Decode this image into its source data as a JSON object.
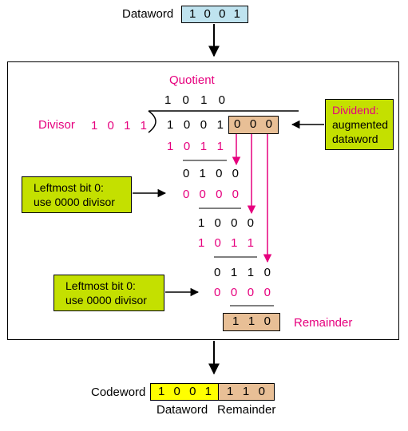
{
  "top": {
    "label": "Dataword",
    "bits": [
      "1",
      "0",
      "0",
      "1"
    ]
  },
  "division": {
    "quotient_label": "Quotient",
    "quotient": [
      "1",
      "0",
      "1",
      "0"
    ],
    "divisor_label": "Divisor",
    "divisor": [
      "1",
      "0",
      "1",
      "1"
    ],
    "dividend_data": [
      "1",
      "0",
      "0",
      "1"
    ],
    "dividend_zeros": [
      "0",
      "0",
      "0"
    ],
    "step1_sub": [
      "1",
      "0",
      "1",
      "1"
    ],
    "step2_rem": [
      "0",
      "1",
      "0",
      "0"
    ],
    "step2_sub": [
      "0",
      "0",
      "0",
      "0"
    ],
    "step3_rem": [
      "1",
      "0",
      "0",
      "0"
    ],
    "step3_sub": [
      "1",
      "0",
      "1",
      "1"
    ],
    "step4_rem": [
      "0",
      "1",
      "1",
      "0"
    ],
    "step4_sub": [
      "0",
      "0",
      "0",
      "0"
    ],
    "remainder": [
      "1",
      "1",
      "0"
    ],
    "remainder_label": "Remainder"
  },
  "callouts": {
    "dividend_title": "Dividend:",
    "dividend_line1": "augmented",
    "dividend_line2": "dataword",
    "leftmost1_line1": "Leftmost bit 0:",
    "leftmost1_line2": "use 0000 divisor",
    "leftmost2_line1": "Leftmost bit 0:",
    "leftmost2_line2": "use 0000 divisor"
  },
  "bottom": {
    "label": "Codeword",
    "data_bits": [
      "1",
      "0",
      "0",
      "1"
    ],
    "rem_bits": [
      "1",
      "1",
      "0"
    ],
    "data_caption": "Dataword",
    "rem_caption": "Remainder"
  },
  "colors": {
    "magenta": "#e6007e",
    "dataword_box": "#bfe3ef",
    "remainder_box": "#e8bf96",
    "codeword_data": "#ffff00",
    "callout_box": "#c4e000"
  }
}
